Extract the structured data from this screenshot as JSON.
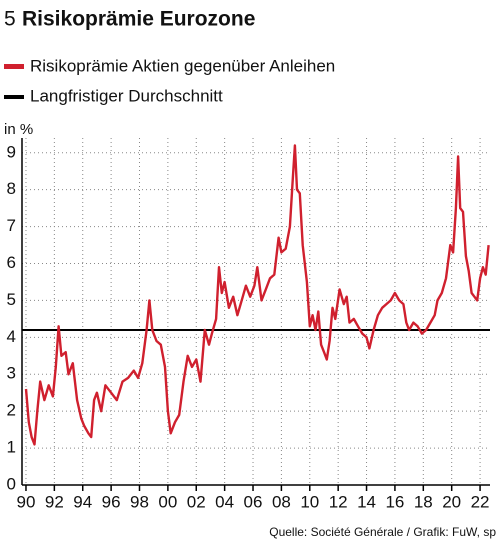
{
  "chart_data": {
    "type": "line",
    "number": "5",
    "title": "Risikoprämie Eurozone",
    "ylabel": "in %",
    "source": "Quelle: Société Générale / Grafik: FuW, sp",
    "xlim": [
      1989.72,
      2022.7
    ],
    "ylim": [
      0,
      9.4
    ],
    "grid": true,
    "yticks": [
      0,
      1,
      2,
      3,
      4,
      5,
      6,
      7,
      8,
      9
    ],
    "xticks": [
      {
        "value": 1990,
        "label": "90"
      },
      {
        "value": 1992,
        "label": "92"
      },
      {
        "value": 1994,
        "label": "94"
      },
      {
        "value": 1996,
        "label": "96"
      },
      {
        "value": 1998,
        "label": "98"
      },
      {
        "value": 2000,
        "label": "00"
      },
      {
        "value": 2002,
        "label": "02"
      },
      {
        "value": 2004,
        "label": "04"
      },
      {
        "value": 2006,
        "label": "06"
      },
      {
        "value": 2008,
        "label": "08"
      },
      {
        "value": 2010,
        "label": "10"
      },
      {
        "value": 2012,
        "label": "12"
      },
      {
        "value": 2014,
        "label": "14"
      },
      {
        "value": 2016,
        "label": "16"
      },
      {
        "value": 2018,
        "label": "18"
      },
      {
        "value": 2020,
        "label": "20"
      },
      {
        "value": 2022,
        "label": "22"
      }
    ],
    "series": [
      {
        "name": "Risikoprämie Aktien gegenüber Anleihen",
        "color": "#d0202e",
        "x": [
          1990.0,
          1990.2,
          1990.4,
          1990.6,
          1990.8,
          1991.0,
          1991.3,
          1991.6,
          1991.9,
          1992.1,
          1992.3,
          1992.5,
          1992.8,
          1993.0,
          1993.3,
          1993.6,
          1993.9,
          1994.1,
          1994.4,
          1994.6,
          1994.8,
          1995.0,
          1995.3,
          1995.6,
          1996.0,
          1996.4,
          1996.8,
          1997.2,
          1997.6,
          1997.9,
          1998.2,
          1998.5,
          1998.7,
          1998.9,
          1999.2,
          1999.5,
          1999.8,
          2000.0,
          2000.2,
          2000.5,
          2000.8,
          2001.1,
          2001.4,
          2001.7,
          2002.0,
          2002.3,
          2002.6,
          2002.9,
          2003.1,
          2003.4,
          2003.6,
          2003.8,
          2004.0,
          2004.3,
          2004.6,
          2004.9,
          2005.2,
          2005.5,
          2005.8,
          2006.1,
          2006.3,
          2006.6,
          2006.9,
          2007.2,
          2007.5,
          2007.8,
          2008.0,
          2008.3,
          2008.6,
          2008.8,
          2008.95,
          2009.1,
          2009.3,
          2009.5,
          2009.8,
          2010.0,
          2010.2,
          2010.4,
          2010.6,
          2010.8,
          2011.0,
          2011.2,
          2011.4,
          2011.6,
          2011.8,
          2012.1,
          2012.4,
          2012.6,
          2012.8,
          2013.1,
          2013.4,
          2013.7,
          2014.0,
          2014.2,
          2014.5,
          2014.8,
          2015.1,
          2015.4,
          2015.7,
          2016.0,
          2016.3,
          2016.6,
          2016.8,
          2017.0,
          2017.3,
          2017.6,
          2017.9,
          2018.2,
          2018.5,
          2018.8,
          2019.0,
          2019.3,
          2019.6,
          2019.9,
          2020.1,
          2020.3,
          2020.45,
          2020.6,
          2020.8,
          2021.0,
          2021.2,
          2021.4,
          2021.6,
          2021.8,
          2022.0,
          2022.2,
          2022.4,
          2022.6
        ],
        "values": [
          2.6,
          1.7,
          1.3,
          1.1,
          2.0,
          2.8,
          2.3,
          2.7,
          2.4,
          3.2,
          4.3,
          3.5,
          3.6,
          3.0,
          3.3,
          2.3,
          1.8,
          1.6,
          1.4,
          1.3,
          2.3,
          2.5,
          2.0,
          2.7,
          2.5,
          2.3,
          2.8,
          2.9,
          3.1,
          2.9,
          3.3,
          4.2,
          5.0,
          4.2,
          3.9,
          3.8,
          3.2,
          2.0,
          1.4,
          1.7,
          1.9,
          2.8,
          3.5,
          3.2,
          3.4,
          2.8,
          4.2,
          3.8,
          4.1,
          4.5,
          5.9,
          5.2,
          5.5,
          4.8,
          5.1,
          4.6,
          5.0,
          5.4,
          5.1,
          5.4,
          5.9,
          5.0,
          5.3,
          5.6,
          5.7,
          6.7,
          6.3,
          6.4,
          7.0,
          8.3,
          9.2,
          8.0,
          7.9,
          6.5,
          5.5,
          4.3,
          4.6,
          4.2,
          4.7,
          3.8,
          3.6,
          3.4,
          3.9,
          4.8,
          4.5,
          5.3,
          4.9,
          5.1,
          4.4,
          4.5,
          4.3,
          4.1,
          4.0,
          3.7,
          4.2,
          4.6,
          4.8,
          4.9,
          5.0,
          5.2,
          5.0,
          4.9,
          4.4,
          4.2,
          4.4,
          4.3,
          4.1,
          4.2,
          4.4,
          4.6,
          5.0,
          5.2,
          5.6,
          6.5,
          6.3,
          7.5,
          8.9,
          7.5,
          7.4,
          6.2,
          5.8,
          5.2,
          5.1,
          5.0,
          5.6,
          5.9,
          5.7,
          6.5
        ]
      }
    ],
    "average": {
      "name": "Langfristiger Durchschnitt",
      "color": "#000000",
      "value": 4.2
    }
  }
}
